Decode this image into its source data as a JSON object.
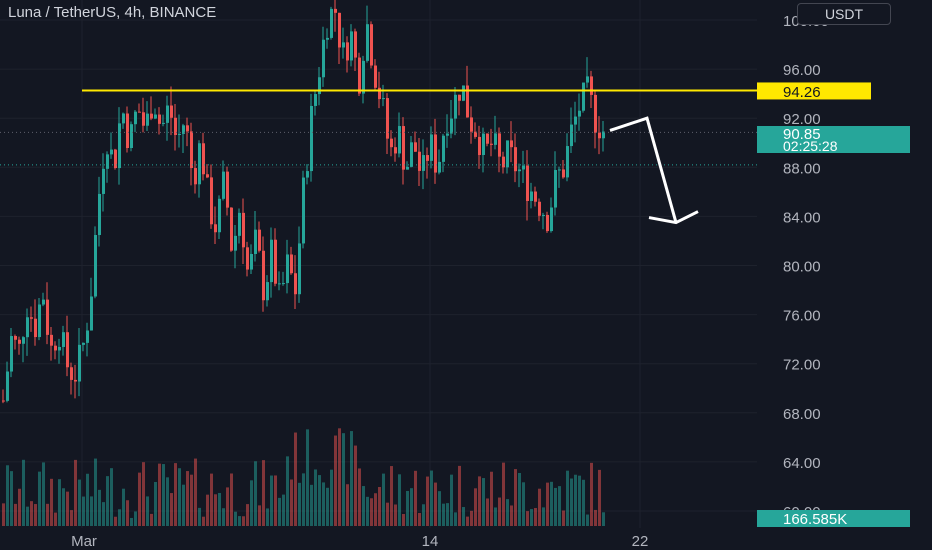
{
  "header": {
    "symbol": "Luna / TetherUS",
    "interval": "4h",
    "exchange": "BINANCE",
    "currency_button": "USDT"
  },
  "price_axis": {
    "ticks": [
      "100.00",
      "96.00",
      "92.00",
      "88.00",
      "84.00",
      "80.00",
      "76.00",
      "72.00",
      "68.00",
      "64.00",
      "60.00"
    ]
  },
  "time_axis": {
    "ticks": [
      "Mar",
      "14",
      "22"
    ]
  },
  "markers": {
    "level_label": "94.26",
    "last_price": "90.85",
    "countdown": "02:25:28",
    "volume_label": "166.585K"
  },
  "colors": {
    "background": "#131722",
    "up": "#26a69a",
    "down": "#ef5350",
    "level_line": "#ffe800",
    "last_price_tag": "#26a69a",
    "arrow": "#ffffff"
  },
  "chart_data": {
    "type": "candlestick",
    "title": "Luna / TetherUS, 4h, BINANCE",
    "ylabel": "USDT",
    "ylim": [
      59,
      101
    ],
    "horizontal_level": 94.26,
    "last_price": 90.85,
    "last_volume": "166.585K",
    "x_ticks": [
      "Mar",
      "14",
      "22"
    ],
    "close_path": [
      [
        0,
        69
      ],
      [
        5,
        74
      ],
      [
        10,
        73
      ],
      [
        15,
        77
      ],
      [
        20,
        75
      ],
      [
        25,
        78
      ],
      [
        30,
        73
      ],
      [
        35,
        75
      ],
      [
        40,
        72
      ],
      [
        45,
        71
      ],
      [
        50,
        73
      ],
      [
        55,
        77
      ],
      [
        60,
        85
      ],
      [
        65,
        91
      ],
      [
        70,
        88
      ],
      [
        75,
        93
      ],
      [
        80,
        90
      ],
      [
        85,
        93
      ],
      [
        90,
        91
      ],
      [
        95,
        94
      ],
      [
        100,
        91
      ],
      [
        105,
        93
      ],
      [
        110,
        90
      ],
      [
        115,
        92
      ],
      [
        120,
        87
      ],
      [
        125,
        90
      ],
      [
        130,
        85
      ],
      [
        135,
        83
      ],
      [
        140,
        87
      ],
      [
        145,
        81
      ],
      [
        150,
        85
      ],
      [
        155,
        79
      ],
      [
        160,
        82
      ],
      [
        165,
        78
      ],
      [
        170,
        81
      ],
      [
        175,
        77
      ],
      [
        180,
        80
      ],
      [
        185,
        78
      ],
      [
        190,
        86
      ],
      [
        195,
        92
      ],
      [
        200,
        96
      ],
      [
        205,
        100
      ],
      [
        210,
        101
      ],
      [
        215,
        97
      ],
      [
        220,
        99
      ],
      [
        225,
        95
      ],
      [
        230,
        100
      ],
      [
        235,
        96
      ],
      [
        240,
        93
      ],
      [
        245,
        89
      ],
      [
        250,
        91
      ],
      [
        255,
        88
      ],
      [
        260,
        90
      ],
      [
        265,
        87
      ],
      [
        270,
        90
      ],
      [
        275,
        88
      ],
      [
        280,
        92
      ],
      [
        285,
        93
      ],
      [
        290,
        95
      ],
      [
        295,
        92
      ],
      [
        300,
        91
      ],
      [
        305,
        89
      ],
      [
        310,
        90
      ],
      [
        315,
        88
      ],
      [
        320,
        89
      ],
      [
        325,
        88
      ],
      [
        330,
        87
      ],
      [
        335,
        86
      ],
      [
        340,
        85
      ],
      [
        345,
        84
      ],
      [
        350,
        87
      ],
      [
        355,
        88
      ],
      [
        360,
        91
      ],
      [
        365,
        93
      ],
      [
        370,
        94
      ],
      [
        375,
        92
      ],
      [
        380,
        91
      ]
    ],
    "projection_arrow": {
      "from": 91,
      "via": 92,
      "to": 83.5
    }
  }
}
